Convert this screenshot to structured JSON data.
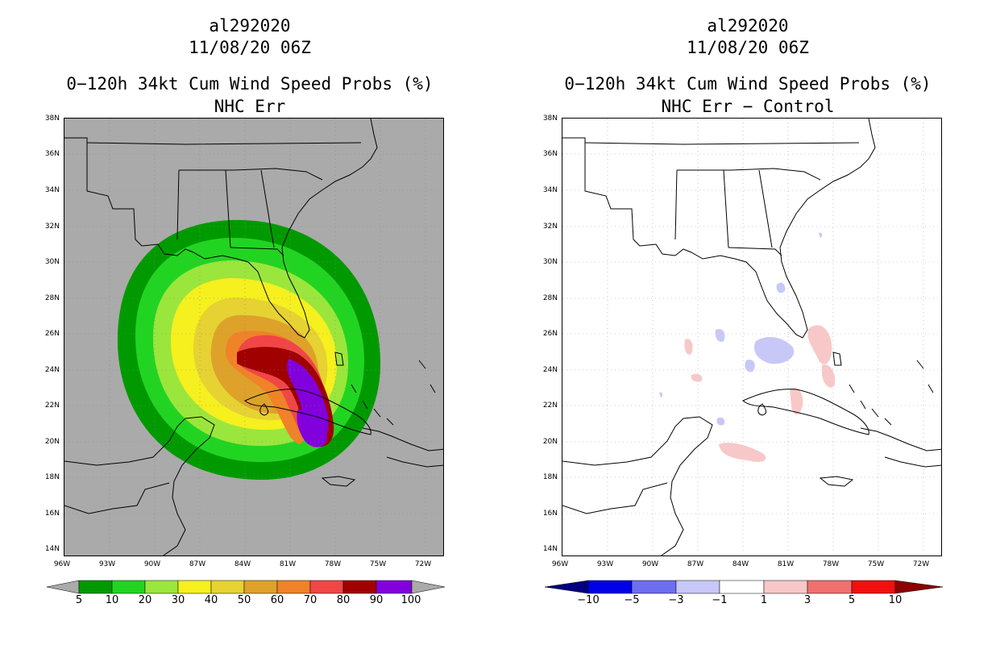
{
  "left_panel": {
    "storm_id": "al292020",
    "datetime": "11/08/20 06Z",
    "title": "0−120h 34kt Cum Wind Speed Probs (%)",
    "subtitle": "NHC Err",
    "colorbar": {
      "labels": [
        "5",
        "10",
        "20",
        "30",
        "40",
        "50",
        "60",
        "70",
        "80",
        "90",
        "100"
      ],
      "colors": [
        "#aaaaaa",
        "#009a00",
        "#22d422",
        "#9be63c",
        "#f5f01e",
        "#e6d232",
        "#dea22a",
        "#f08228",
        "#f04646",
        "#a00000",
        "#8200dc",
        "#aaaaaa"
      ]
    }
  },
  "right_panel": {
    "storm_id": "al292020",
    "datetime": "11/08/20 06Z",
    "title": "0−120h 34kt Cum Wind Speed Probs (%)",
    "subtitle": "NHC Err − Control",
    "colorbar": {
      "labels": [
        "−10",
        "−5",
        "−3",
        "−1",
        "1",
        "3",
        "5",
        "10"
      ],
      "colors": [
        "#000080",
        "#0000e6",
        "#6e6ef0",
        "#c8c8f8",
        "#ffffff",
        "#f8c8c8",
        "#f07070",
        "#f01010",
        "#8c0000"
      ]
    }
  },
  "axes": {
    "lat_labels": [
      "38N",
      "36N",
      "34N",
      "32N",
      "30N",
      "28N",
      "26N",
      "24N",
      "22N",
      "20N",
      "18N",
      "16N",
      "14N"
    ],
    "lon_labels": [
      "96W",
      "93W",
      "90W",
      "87W",
      "84W",
      "81W",
      "78W",
      "75W",
      "72W"
    ]
  },
  "colors": {
    "ocean_left": "#aaaaaa",
    "coast": "#000000",
    "grid": "#bbbbbb"
  }
}
